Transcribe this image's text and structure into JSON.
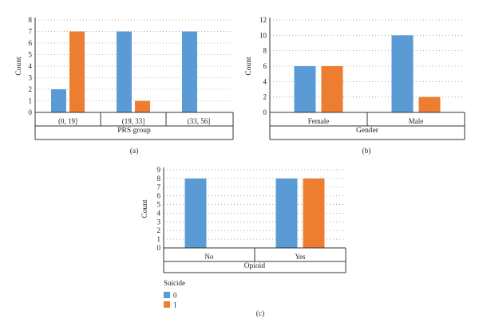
{
  "colors": {
    "series0": "#5b9bd5",
    "series1": "#ed7d31",
    "grid": "#9a9a9a",
    "axis": "#333333"
  },
  "legend": {
    "title": "Suicide",
    "entries": [
      {
        "label": "0",
        "color": "#5b9bd5"
      },
      {
        "label": "1",
        "color": "#ed7d31"
      }
    ]
  },
  "chart_data": [
    {
      "panel": "(a)",
      "type": "bar",
      "xlabel": "PRS group",
      "ylabel": "Count",
      "categories": [
        "(0, 19]",
        "(19, 33]",
        "(33, 56]"
      ],
      "series": [
        {
          "name": "0",
          "values": [
            2,
            7,
            7
          ]
        },
        {
          "name": "1",
          "values": [
            7,
            1,
            0
          ]
        }
      ],
      "ylim": [
        0,
        8
      ],
      "yticks": [
        0,
        1,
        2,
        3,
        4,
        5,
        6,
        7,
        8
      ],
      "grid": true
    },
    {
      "panel": "(b)",
      "type": "bar",
      "xlabel": "Gender",
      "ylabel": "Count",
      "categories": [
        "Female",
        "Male"
      ],
      "series": [
        {
          "name": "0",
          "values": [
            6,
            10
          ]
        },
        {
          "name": "1",
          "values": [
            6,
            2
          ]
        }
      ],
      "ylim": [
        0,
        12
      ],
      "yticks": [
        0,
        2,
        4,
        6,
        8,
        10,
        12
      ],
      "grid": true
    },
    {
      "panel": "(c)",
      "type": "bar",
      "xlabel": "Opioid",
      "ylabel": "Count",
      "categories": [
        "No",
        "Yes"
      ],
      "series": [
        {
          "name": "0",
          "values": [
            8,
            8
          ]
        },
        {
          "name": "1",
          "values": [
            0,
            8
          ]
        }
      ],
      "ylim": [
        0,
        9
      ],
      "yticks": [
        0,
        1,
        2,
        3,
        4,
        5,
        6,
        7,
        8,
        9
      ],
      "grid": true
    }
  ]
}
